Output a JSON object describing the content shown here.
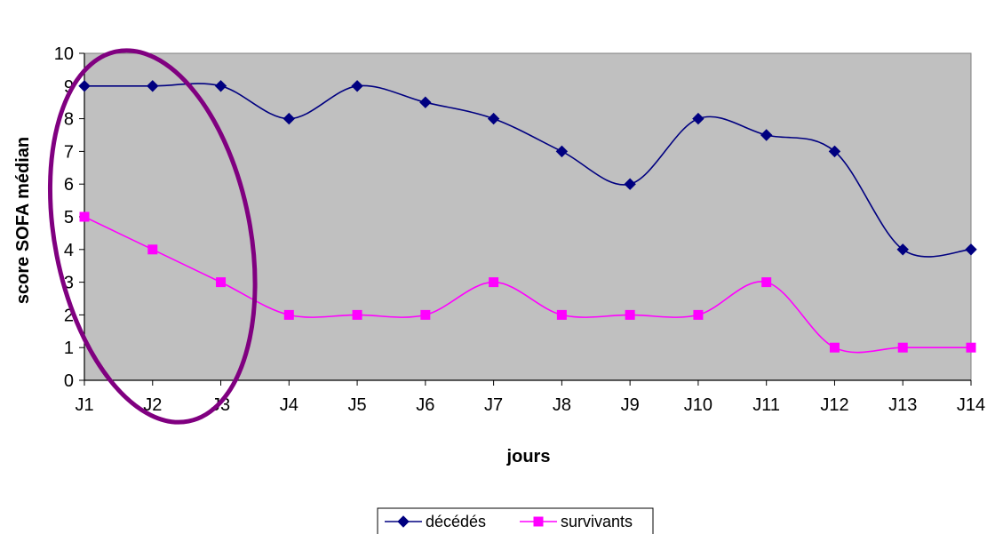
{
  "chart_data": {
    "type": "line",
    "title": "",
    "xlabel": "jours",
    "ylabel": "score SOFA médian",
    "categories": [
      "J1",
      "J2",
      "J3",
      "J4",
      "J5",
      "J6",
      "J7",
      "J8",
      "J9",
      "J10",
      "J11",
      "J12",
      "J13",
      "J14"
    ],
    "ylim": [
      0,
      10
    ],
    "yticks": [
      "0",
      "1",
      "2",
      "3",
      "4",
      "5",
      "6",
      "7",
      "8",
      "9",
      "10"
    ],
    "grid": false,
    "smoothed": true,
    "plot_background": "#C0C0C0",
    "legend_position": "bottom",
    "series": [
      {
        "name": "décédés",
        "color": "#000080",
        "marker": "diamond",
        "values": [
          9,
          9,
          9,
          8,
          9,
          8.5,
          8,
          7,
          6,
          8,
          7.5,
          7,
          4,
          4
        ]
      },
      {
        "name": "survivants",
        "color": "#FF00FF",
        "marker": "square",
        "values": [
          5,
          4,
          3,
          2,
          2,
          2,
          3,
          2,
          2,
          2,
          3,
          1,
          1,
          1
        ]
      }
    ],
    "annotation": {
      "shape": "ellipse",
      "color": "#800080",
      "highlights": [
        "J1",
        "J2",
        "J3"
      ]
    }
  }
}
